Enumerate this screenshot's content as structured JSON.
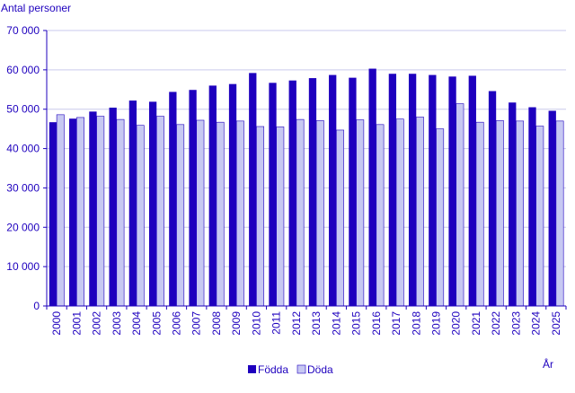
{
  "chart_data": {
    "type": "bar",
    "title": "",
    "ylabel": "Antal personer",
    "xlabel": "År",
    "ylim": [
      0,
      70000
    ],
    "yticks": [
      0,
      10000,
      20000,
      30000,
      40000,
      50000,
      60000,
      70000
    ],
    "ytick_labels": [
      "0",
      "10 000",
      "20 000",
      "30 000",
      "40 000",
      "50 000",
      "60 000",
      "70 000"
    ],
    "grid": true,
    "legend_position": "bottom-center",
    "categories": [
      "2000",
      "2001",
      "2002",
      "2003",
      "2004",
      "2005",
      "2006",
      "2007",
      "2008",
      "2009",
      "2010",
      "2011",
      "2012",
      "2013",
      "2014",
      "2015",
      "2016",
      "2017",
      "2018",
      "2019",
      "2020",
      "2021",
      "2022",
      "2023",
      "2024",
      "2025"
    ],
    "series": [
      {
        "name": "Födda",
        "color": "#1e00be",
        "values": [
          46700,
          47600,
          49400,
          50400,
          52200,
          51900,
          54400,
          54900,
          56000,
          56400,
          59200,
          56700,
          57300,
          57900,
          58700,
          58000,
          60300,
          59000,
          59000,
          58700,
          58300,
          58500,
          54600,
          51700,
          50500,
          49600
        ]
      },
      {
        "name": "Döda",
        "color": "#c7c8f2",
        "values": [
          48600,
          47900,
          48200,
          47400,
          45900,
          48200,
          46100,
          47200,
          46700,
          47000,
          45600,
          45500,
          47400,
          47100,
          44700,
          47300,
          46100,
          47500,
          48000,
          45000,
          51400,
          46700,
          47100,
          47000,
          45700,
          47000
        ]
      }
    ]
  }
}
